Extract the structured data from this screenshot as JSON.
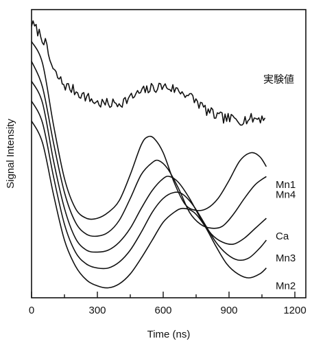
{
  "chart_data": {
    "type": "line",
    "xlabel": "Time (ns)",
    "ylabel": "Signal Intensity",
    "xlim": [
      0,
      1250
    ],
    "xticks": [
      0,
      300,
      600,
      900,
      1200
    ],
    "yticks_shown": false,
    "grid": false,
    "legend": "inline labels at right end of each curve",
    "colors": {
      "line": "#111111",
      "background": "#ffffff"
    },
    "series": [
      {
        "name": "実験値",
        "noisy": true,
        "x": [
          0,
          30,
          60,
          80,
          100,
          120,
          150,
          200,
          250,
          300,
          350,
          400,
          450,
          500,
          550,
          600,
          650,
          700,
          750,
          800,
          850,
          900,
          950,
          1000,
          1050,
          1070
        ],
        "y": [
          12.3,
          11.9,
          11.4,
          10.6,
          9.9,
          9.6,
          9.2,
          8.9,
          8.6,
          8.3,
          8.25,
          8.3,
          8.55,
          8.85,
          9.05,
          9.15,
          9.0,
          8.8,
          8.4,
          7.9,
          7.6,
          7.5,
          7.45,
          7.5,
          7.55,
          7.6
        ]
      },
      {
        "name": "Mn1",
        "x": [
          0,
          50,
          100,
          150,
          200,
          250,
          300,
          350,
          400,
          450,
          500,
          530,
          560,
          600,
          650,
          700,
          750,
          800,
          850,
          900,
          950,
          1000,
          1040,
          1070
        ],
        "y": [
          11.4,
          10.3,
          7.2,
          4.5,
          3.0,
          2.5,
          2.5,
          2.8,
          3.4,
          4.7,
          6.2,
          6.6,
          6.5,
          5.8,
          4.3,
          3.2,
          2.9,
          3.0,
          3.5,
          4.4,
          5.4,
          5.8,
          5.6,
          5.1
        ]
      },
      {
        "name": "Mn4",
        "x": [
          0,
          50,
          100,
          150,
          200,
          250,
          300,
          350,
          400,
          450,
          500,
          550,
          580,
          620,
          670,
          720,
          770,
          820,
          870,
          920,
          970,
          1020,
          1070
        ],
        "y": [
          10.4,
          9.1,
          6.3,
          3.8,
          2.3,
          1.7,
          1.6,
          1.8,
          2.4,
          3.5,
          4.7,
          5.3,
          5.4,
          5.0,
          4.0,
          2.8,
          2.2,
          2.0,
          2.1,
          2.7,
          3.5,
          4.2,
          4.6
        ]
      },
      {
        "name": "Ca",
        "x": [
          0,
          50,
          100,
          150,
          200,
          250,
          300,
          350,
          400,
          450,
          500,
          550,
          600,
          630,
          670,
          720,
          770,
          820,
          870,
          920,
          970,
          1020,
          1070
        ],
        "y": [
          9.4,
          8.3,
          5.4,
          3.0,
          1.5,
          0.9,
          0.8,
          0.9,
          1.3,
          2.0,
          3.0,
          3.9,
          4.5,
          4.6,
          4.3,
          3.5,
          2.5,
          1.7,
          1.3,
          1.2,
          1.5,
          2.0,
          2.5
        ]
      },
      {
        "name": "Mn3",
        "x": [
          0,
          50,
          100,
          150,
          200,
          250,
          300,
          350,
          400,
          450,
          500,
          550,
          600,
          650,
          690,
          740,
          790,
          840,
          890,
          940,
          990,
          1040,
          1070
        ],
        "y": [
          8.4,
          7.3,
          4.6,
          2.2,
          0.8,
          0.2,
          0.0,
          0.0,
          0.3,
          0.9,
          1.8,
          2.8,
          3.5,
          3.8,
          3.7,
          3.1,
          2.2,
          1.3,
          0.7,
          0.4,
          0.5,
          1.0,
          1.4
        ]
      },
      {
        "name": "Mn2",
        "x": [
          0,
          50,
          100,
          150,
          200,
          250,
          300,
          350,
          400,
          450,
          500,
          550,
          600,
          650,
          690,
          740,
          790,
          840,
          890,
          940,
          990,
          1040,
          1070
        ],
        "y": [
          7.4,
          6.3,
          3.7,
          1.4,
          0.1,
          -0.6,
          -0.9,
          -1.0,
          -0.8,
          -0.3,
          0.5,
          1.4,
          2.3,
          2.8,
          3.0,
          2.8,
          2.1,
          1.1,
          0.2,
          -0.3,
          -0.5,
          -0.3,
          0.0
        ]
      }
    ]
  }
}
